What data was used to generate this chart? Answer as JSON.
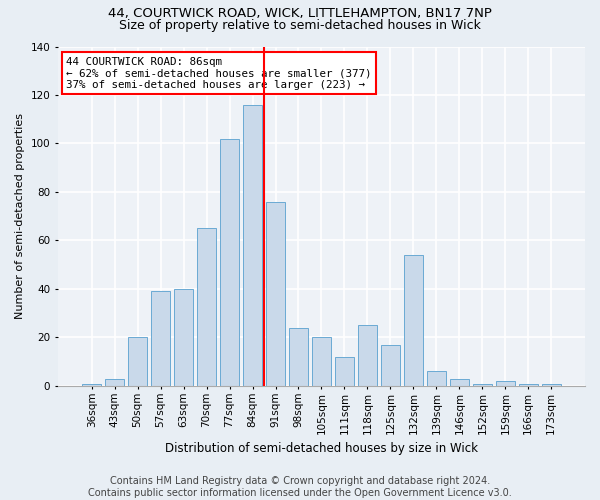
{
  "title": "44, COURTWICK ROAD, WICK, LITTLEHAMPTON, BN17 7NP",
  "subtitle": "Size of property relative to semi-detached houses in Wick",
  "xlabel": "Distribution of semi-detached houses by size in Wick",
  "ylabel": "Number of semi-detached properties",
  "categories": [
    "36sqm",
    "43sqm",
    "50sqm",
    "57sqm",
    "63sqm",
    "70sqm",
    "77sqm",
    "84sqm",
    "91sqm",
    "98sqm",
    "105sqm",
    "111sqm",
    "118sqm",
    "125sqm",
    "132sqm",
    "139sqm",
    "146sqm",
    "152sqm",
    "159sqm",
    "166sqm",
    "173sqm"
  ],
  "values": [
    1,
    3,
    20,
    39,
    40,
    65,
    102,
    116,
    76,
    24,
    20,
    12,
    25,
    17,
    54,
    6,
    3,
    1,
    2,
    1,
    1
  ],
  "bar_color": "#c9d9ea",
  "bar_edge_color": "#6aaad4",
  "vline_color": "red",
  "vline_x_index": 7,
  "annotation_text": "44 COURTWICK ROAD: 86sqm\n← 62% of semi-detached houses are smaller (377)\n37% of semi-detached houses are larger (223) →",
  "annotation_box_color": "white",
  "annotation_box_edge": "red",
  "ylim": [
    0,
    140
  ],
  "yticks": [
    0,
    20,
    40,
    60,
    80,
    100,
    120,
    140
  ],
  "footer_text": "Contains HM Land Registry data © Crown copyright and database right 2024.\nContains public sector information licensed under the Open Government Licence v3.0.",
  "bg_color": "#e8eef4",
  "plot_bg_color": "#eef2f7",
  "grid_color": "white",
  "title_fontsize": 9.5,
  "subtitle_fontsize": 9,
  "tick_fontsize": 7.5,
  "ylabel_fontsize": 8,
  "xlabel_fontsize": 8.5,
  "annotation_fontsize": 7.8,
  "footer_fontsize": 7
}
